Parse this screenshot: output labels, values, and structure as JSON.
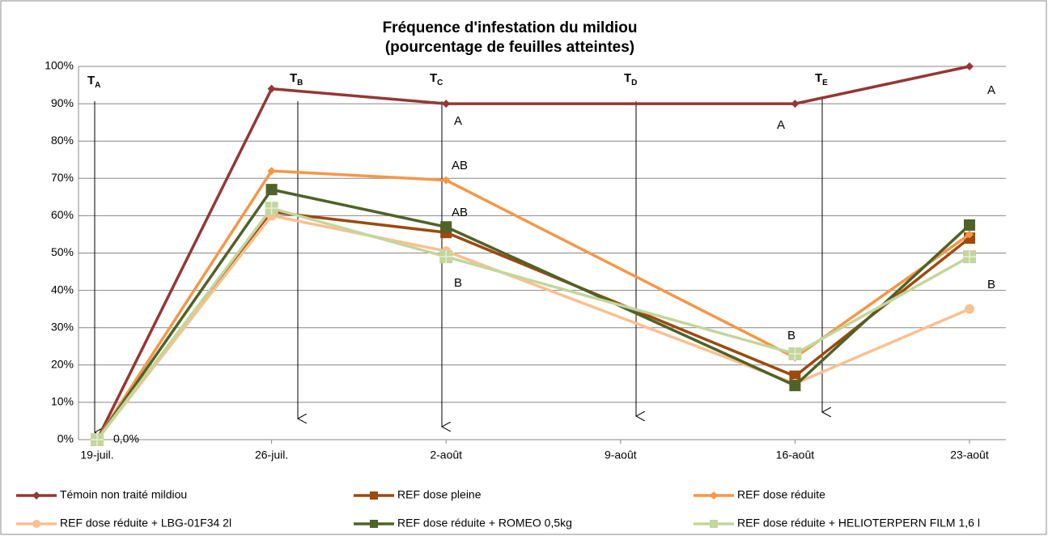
{
  "chart_data": {
    "type": "line",
    "title": [
      "Fréquence d'infestation du mildiou",
      "(pourcentage de feuilles atteintes)"
    ],
    "x": [
      "19-juil.",
      "26-juil.",
      "2-août",
      "16-août",
      "23-août"
    ],
    "xticks": [
      "19-juil.",
      "26-juil.",
      "2-août",
      "9-août",
      "16-août",
      "23-août"
    ],
    "ylim": [
      0,
      100
    ],
    "yticks": [
      {
        "value": 0,
        "label": "0%"
      },
      {
        "value": 10,
        "label": "10%"
      },
      {
        "value": 20,
        "label": "20%"
      },
      {
        "value": 30,
        "label": "30%"
      },
      {
        "value": 40,
        "label": "40%"
      },
      {
        "value": 50,
        "label": "50%"
      },
      {
        "value": 60,
        "label": "60%"
      },
      {
        "value": 70,
        "label": "70%"
      },
      {
        "value": 80,
        "label": "80%"
      },
      {
        "value": 90,
        "label": "90%"
      },
      {
        "value": 100,
        "label": "100%"
      }
    ],
    "grid": true,
    "legend": "bottom",
    "series": [
      {
        "name": "Témoin non traité mildiou",
        "color": "#953735",
        "marker": "diamond",
        "values": [
          0,
          94,
          90,
          90,
          100
        ]
      },
      {
        "name": "REF dose pleine",
        "color": "#9c4a0e",
        "marker": "square",
        "values": [
          0,
          61,
          55.5,
          17,
          54
        ]
      },
      {
        "name": "REF dose réduite",
        "color": "#f79646",
        "marker": "diamond",
        "values": [
          0,
          72,
          69.5,
          22,
          55
        ]
      },
      {
        "name": "REF dose réduite + LBG-01F34 2l",
        "color": "#fac090",
        "marker": "circle",
        "values": [
          0,
          60,
          50.5,
          15,
          35
        ]
      },
      {
        "name": "REF dose réduite + ROMEO 0,5kg",
        "color": "#4f6228",
        "marker": "square",
        "values": [
          0,
          67,
          57,
          14.5,
          57.5
        ]
      },
      {
        "name": "REF dose réduite + HELIOTERPERN FILM 1,6 l",
        "color": "#c3d69b",
        "marker": "square",
        "values": [
          0,
          62,
          49,
          23,
          49
        ],
        "value_labels": [
          "0,0%",
          null,
          null,
          null,
          null
        ]
      }
    ],
    "treatments": [
      {
        "label": "T",
        "sub": "A"
      },
      {
        "label": "T",
        "sub": "B"
      },
      {
        "label": "T",
        "sub": "C"
      },
      {
        "label": "T",
        "sub": "D"
      },
      {
        "label": "T",
        "sub": "E"
      }
    ],
    "annotations": [
      "A",
      "AB",
      "AB",
      "B",
      "A",
      "B",
      "A",
      "B"
    ]
  }
}
